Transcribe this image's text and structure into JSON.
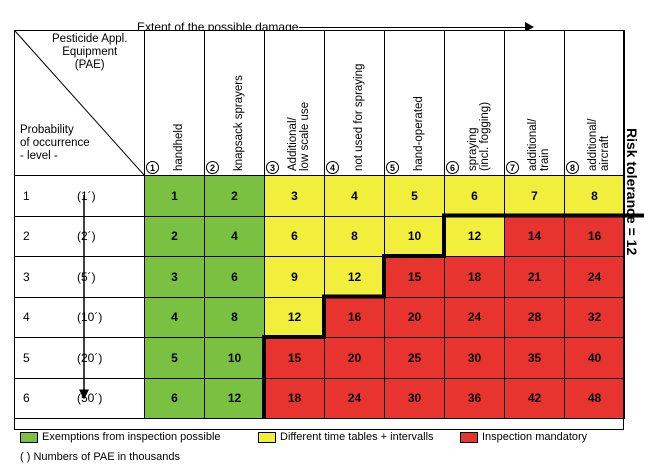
{
  "top_title": "Extent of the possible damage",
  "corner": {
    "pae_title": "Pesticide Appl.\nEquipment\n(PAE)",
    "prob_title": "Probability\nof occurrence\n- level -"
  },
  "columns": [
    {
      "num": "1",
      "label": "handheld"
    },
    {
      "num": "2",
      "label": "knapsack sprayers"
    },
    {
      "num": "3",
      "label": "Additional/\nlow scale use"
    },
    {
      "num": "4",
      "label": "not used for spraying"
    },
    {
      "num": "5",
      "label": "hand-operated"
    },
    {
      "num": "6",
      "label": "spraying\n(incl. fogging)"
    },
    {
      "num": "7",
      "label": "additional/\ntrain"
    },
    {
      "num": "8",
      "label": "additional/\naircraft"
    }
  ],
  "rows": [
    {
      "level": "1",
      "pae": "(1´)"
    },
    {
      "level": "2",
      "pae": "(2´)"
    },
    {
      "level": "3",
      "pae": "(5´)"
    },
    {
      "level": "4",
      "pae": "(10´)"
    },
    {
      "level": "5",
      "pae": "(20´)"
    },
    {
      "level": "6",
      "pae": "(50´)"
    }
  ],
  "matrix": [
    [
      "1",
      "2",
      "3",
      "4",
      "5",
      "6",
      "7",
      "8"
    ],
    [
      "2",
      "4",
      "6",
      "8",
      "10",
      "12",
      "14",
      "16"
    ],
    [
      "3",
      "6",
      "9",
      "12",
      "15",
      "18",
      "21",
      "24"
    ],
    [
      "4",
      "8",
      "12",
      "16",
      "20",
      "24",
      "28",
      "32"
    ],
    [
      "5",
      "10",
      "15",
      "20",
      "25",
      "30",
      "35",
      "40"
    ],
    [
      "6",
      "12",
      "18",
      "24",
      "30",
      "36",
      "42",
      "48"
    ]
  ],
  "risk_label": "Risk   tolerance = 12",
  "legend": {
    "green": "Exemptions from inspection possible",
    "yellow": "Different time tables + intervalls",
    "red": "Inspection mandatory",
    "note": "( )  Numbers of PAE in thousands"
  },
  "colors": {
    "green": "#7ac142",
    "yellow": "#f2ee3c",
    "red": "#e8342e"
  }
}
